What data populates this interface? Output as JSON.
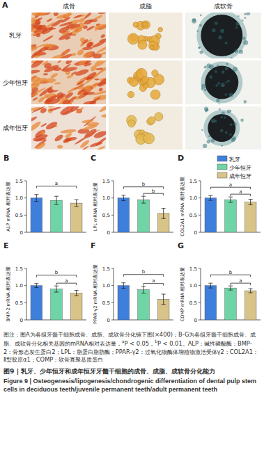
{
  "panel_a": {
    "label": "A",
    "columns": [
      "成骨",
      "成脂",
      "成软骨"
    ],
    "rows": [
      "乳牙",
      "少年恒牙",
      "成年恒牙"
    ]
  },
  "legend_items": [
    {
      "name": "乳牙",
      "color": "#3f7fdc"
    },
    {
      "name": "少年恒牙",
      "color": "#6fd4a6"
    },
    {
      "name": "成年恒牙",
      "color": "#d8c489"
    }
  ],
  "chart_data": [
    {
      "panel": "B",
      "type": "bar",
      "ylabel": "ALP mRNA 相对表达量",
      "categories": [
        null,
        null,
        null
      ],
      "values": [
        1.0,
        0.93,
        0.85
      ],
      "errors": [
        0.1,
        0.12,
        0.1
      ],
      "colors": [
        "#3f7fdc",
        "#6fd4a6",
        "#d8c489"
      ],
      "ylim": [
        0,
        1.5
      ],
      "yticks": [
        0,
        0.5,
        {
          "value": 1,
          "label": "1.0"
        },
        1.5
      ],
      "tick_labels": "y",
      "significance": [
        {
          "from": 0,
          "to": 2,
          "label": "a"
        }
      ]
    },
    {
      "panel": "C",
      "type": "bar",
      "ylabel": "LPL mRNA 相对表达量",
      "categories": [
        null,
        null,
        null
      ],
      "values": [
        1.0,
        0.95,
        0.55
      ],
      "errors": [
        0.08,
        0.1,
        0.15
      ],
      "colors": [
        "#3f7fdc",
        "#6fd4a6",
        "#d8c489"
      ],
      "ylim": [
        0,
        1.5
      ],
      "yticks": [
        0,
        0.5,
        {
          "value": 1,
          "label": "1.0"
        },
        1.5
      ],
      "tick_labels": "y",
      "significance": [
        {
          "from": 0,
          "to": 2,
          "label": "b"
        },
        {
          "from": 1,
          "to": 2,
          "label": "b"
        }
      ]
    },
    {
      "panel": "D",
      "type": "bar",
      "ylabel": "COL2A1 mRNA 相对表达量",
      "categories": [
        null,
        null,
        null
      ],
      "values": [
        1.0,
        0.95,
        0.88
      ],
      "errors": [
        0.07,
        0.08,
        0.08
      ],
      "colors": [
        "#3f7fdc",
        "#6fd4a6",
        "#d8c489"
      ],
      "ylim": [
        0,
        1.5
      ],
      "yticks": [
        0,
        0.5,
        {
          "value": 1,
          "label": "1.0"
        },
        1.5
      ],
      "tick_labels": "y",
      "significance": [
        {
          "from": 0,
          "to": 2,
          "label": "a"
        },
        {
          "from": 1,
          "to": 2,
          "label": "a"
        }
      ]
    },
    {
      "panel": "E",
      "type": "bar",
      "ylabel": "BMP-2 mRNA 相对表达量",
      "categories": [
        null,
        null,
        null
      ],
      "values": [
        1.0,
        0.9,
        0.78
      ],
      "errors": [
        0.06,
        0.09,
        0.08
      ],
      "colors": [
        "#3f7fdc",
        "#6fd4a6",
        "#d8c489"
      ],
      "ylim": [
        0,
        1.5
      ],
      "yticks": [
        0,
        0.5,
        {
          "value": 1,
          "label": "1.0"
        },
        1.5
      ],
      "tick_labels": "y",
      "significance": [
        {
          "from": 0,
          "to": 2,
          "label": "b"
        },
        {
          "from": 1,
          "to": 2,
          "label": "a"
        }
      ]
    },
    {
      "panel": "F",
      "type": "bar",
      "ylabel": "PPAR-γ2 mRNA 相对表达量",
      "categories": [
        null,
        null,
        null
      ],
      "values": [
        1.0,
        0.88,
        0.6
      ],
      "errors": [
        0.08,
        0.1,
        0.15
      ],
      "colors": [
        "#3f7fdc",
        "#6fd4a6",
        "#d8c489"
      ],
      "ylim": [
        0,
        1.5
      ],
      "yticks": [
        0,
        0.5,
        {
          "value": 1,
          "label": "1.0"
        },
        1.5
      ],
      "tick_labels": "y",
      "significance": [
        {
          "from": 0,
          "to": 2,
          "label": "b"
        },
        {
          "from": 1,
          "to": 2,
          "label": "a"
        }
      ]
    },
    {
      "panel": "G",
      "type": "bar",
      "ylabel": "COMP mRNA 相对表达量",
      "categories": [
        null,
        null,
        null
      ],
      "values": [
        1.0,
        0.93,
        0.85
      ],
      "errors": [
        0.07,
        0.06,
        0.06
      ],
      "colors": [
        "#3f7fdc",
        "#6fd4a6",
        "#d8c489"
      ],
      "ylim": [
        0,
        1.5
      ],
      "yticks": [
        0,
        0.5,
        {
          "value": 1,
          "label": "1.0"
        },
        1.5
      ],
      "tick_labels": "y",
      "significance": [
        {
          "from": 0,
          "to": 2,
          "label": "b"
        },
        {
          "from": 1,
          "to": 2,
          "label": "a"
        }
      ]
    }
  ],
  "caption": {
    "note": [
      "图注：图A为各组牙髓干细胞成骨、成脂、成软骨分化镜下图(×400)；B-G为各组牙髓干细胞成骨、成脂、成软骨分化相关基因的mRNA相对表达量，",
      {
        "sup": "a"
      },
      "P < 0.05，",
      {
        "sup": "b"
      },
      "P < 0.01。ALP：碱性磷酸酶；BMP-2：骨形态发生蛋白2；LPL：脂蛋白脂肪酶；PPAR-γ2：过氧化物酶体增殖物激活受体γ2；COL2A1：Ⅱ型胶原α1；COMP：软骨寡聚基质蛋白"
    ],
    "title_zh": "图9 | 乳牙、少年恒牙和成年恒牙牙髓干细胞的成骨、成脂、成软骨分化能力",
    "title_en": "Figure 9 | Osteogenesis/lipogenesis/chondrogenic differentiation of dental pulp stem cells in deciduous teeth/juvenile permanent teeth/adult permanent teeth"
  }
}
